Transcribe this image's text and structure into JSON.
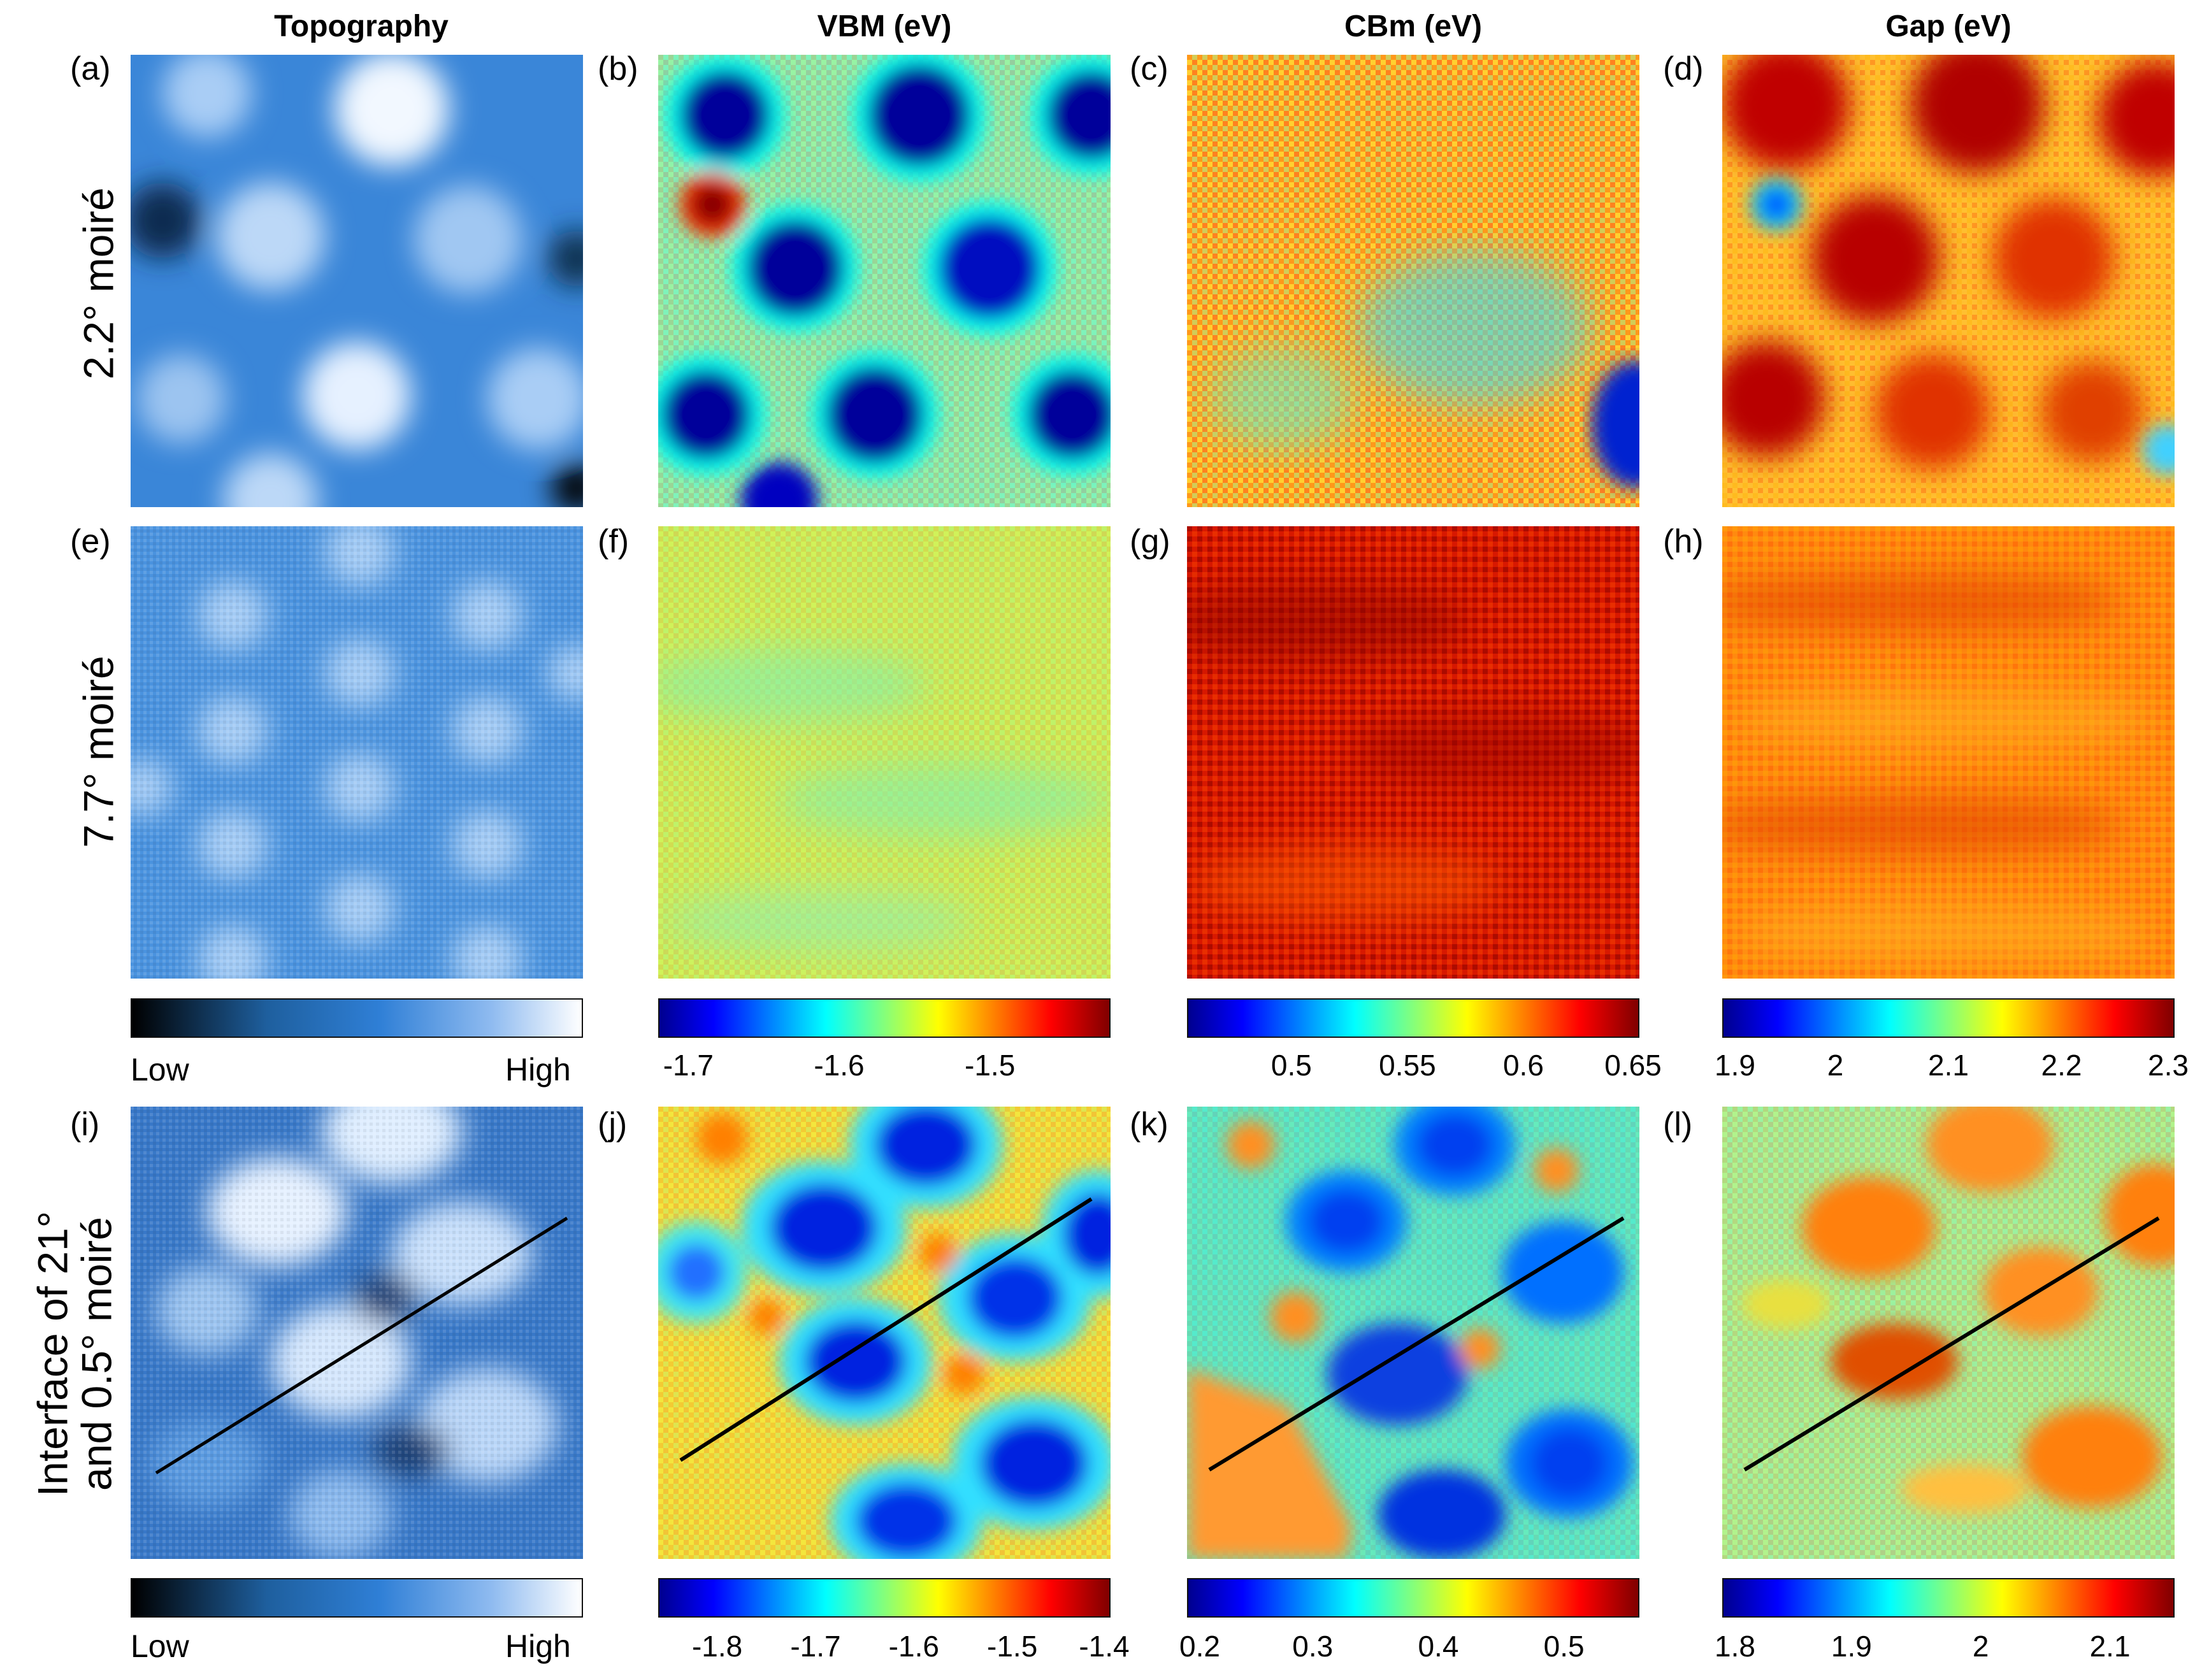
{
  "columns": [
    "Topography",
    "VBM (eV)",
    "CBm (eV)",
    "Gap (eV)"
  ],
  "rows": [
    {
      "label_lines": [
        "2.2° moiré"
      ]
    },
    {
      "label_lines": [
        "7.7° moiré"
      ]
    },
    {
      "label_lines": [
        "Interface of 21°",
        "and 0.5° moiré"
      ]
    }
  ],
  "panel_labels": [
    "(a)",
    "(b)",
    "(c)",
    "(d)",
    "(e)",
    "(f)",
    "(g)",
    "(h)",
    "(i)",
    "(j)",
    "(k)",
    "(l)"
  ],
  "colorbars_mid": {
    "topo": {
      "low": "Low",
      "high": "High"
    },
    "vbm": {
      "range": [
        -1.72,
        -1.42
      ],
      "ticks": [
        "-1.7",
        "-1.6",
        "-1.5"
      ],
      "tick_values": [
        -1.7,
        -1.6,
        -1.5
      ]
    },
    "cbm": {
      "range": [
        0.455,
        0.65
      ],
      "ticks": [
        "0.5",
        "0.55",
        "0.6",
        "0.65"
      ],
      "tick_values": [
        0.5,
        0.55,
        0.6,
        0.65
      ]
    },
    "gap": {
      "range": [
        1.9,
        2.3
      ],
      "ticks": [
        "1.9",
        "2",
        "2.1",
        "2.2",
        "2.3"
      ],
      "tick_values": [
        1.9,
        2.0,
        2.1,
        2.2,
        2.3
      ]
    }
  },
  "colorbars_bottom": {
    "topo": {
      "low": "Low",
      "high": "High"
    },
    "vbm": {
      "range": [
        -1.86,
        -1.4
      ],
      "ticks": [
        "-1.8",
        "-1.7",
        "-1.6",
        "-1.5",
        "-1.4"
      ],
      "tick_values": [
        -1.8,
        -1.7,
        -1.6,
        -1.5,
        -1.4
      ]
    },
    "cbm": {
      "range": [
        0.2,
        0.56
      ],
      "ticks": [
        "0.2",
        "0.3",
        "0.4",
        "0.5"
      ],
      "tick_values": [
        0.2,
        0.3,
        0.4,
        0.5
      ]
    },
    "gap": {
      "range": [
        1.8,
        2.15
      ],
      "ticks": [
        "1.8",
        "1.9",
        "2",
        "2.1"
      ],
      "tick_values": [
        1.8,
        1.9,
        2.0,
        2.1
      ]
    }
  },
  "colors": {
    "topo_gradient": [
      "#000000",
      "#1e5f9e",
      "#2f7fd6",
      "#8fbbf0",
      "#ffffff"
    ],
    "jet_gradient": [
      "#00008f",
      "#0000ff",
      "#00ffff",
      "#ffff00",
      "#ff0000",
      "#800000"
    ],
    "linecut": "#000000"
  }
}
